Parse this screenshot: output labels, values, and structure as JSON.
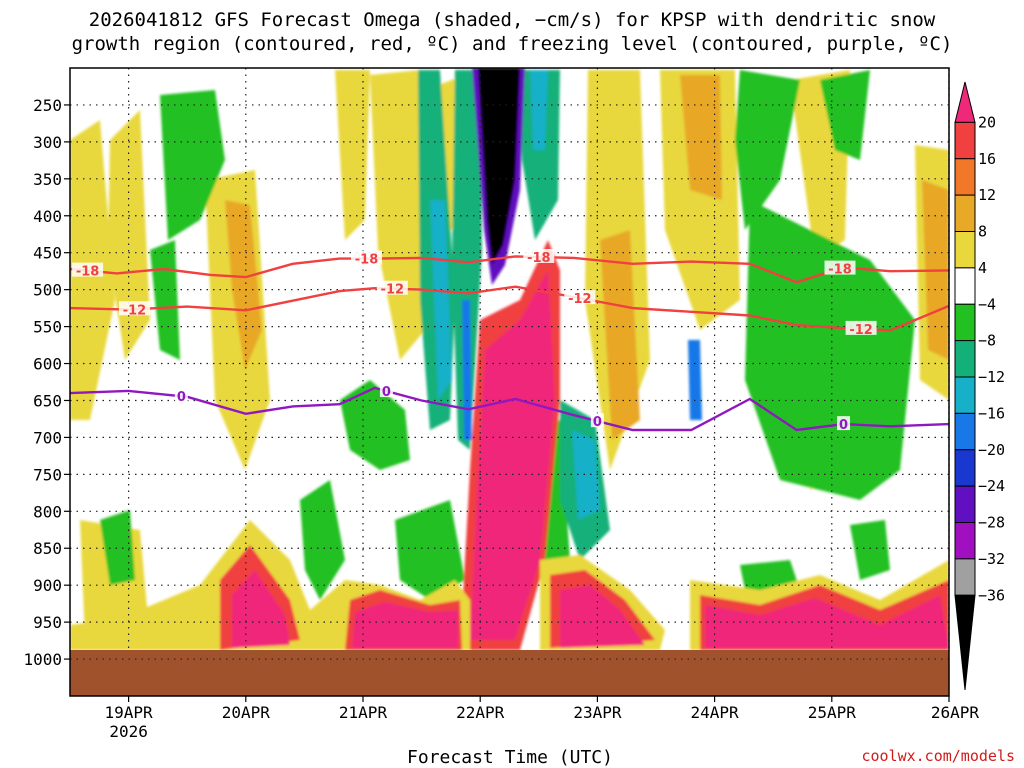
{
  "chart_data": {
    "type": "heatmap",
    "title_lines": [
      "2026041812 GFS Forecast Omega (shaded, −cm/s) for KPSP with dendritic snow",
      "growth region (contoured, red, ºC) and freezing level (contoured, purple, ºC)"
    ],
    "xlabel": "Forecast Time (UTC)",
    "credit": "coolwx.com/models",
    "x_ticks": [
      {
        "t": 0.5,
        "label": "19APR",
        "sub": "2026"
      },
      {
        "t": 1.5,
        "label": "20APR",
        "sub": ""
      },
      {
        "t": 2.5,
        "label": "21APR",
        "sub": ""
      },
      {
        "t": 3.5,
        "label": "22APR",
        "sub": ""
      },
      {
        "t": 4.5,
        "label": "23APR",
        "sub": ""
      },
      {
        "t": 5.5,
        "label": "24APR",
        "sub": ""
      },
      {
        "t": 6.5,
        "label": "25APR",
        "sub": ""
      },
      {
        "t": 7.5,
        "label": "26APR",
        "sub": ""
      }
    ],
    "x_range": [
      0,
      7.5
    ],
    "y_ticks": [
      250,
      300,
      350,
      400,
      450,
      500,
      550,
      600,
      650,
      700,
      750,
      800,
      850,
      900,
      950,
      1000
    ],
    "y_range": [
      200,
      1050
    ],
    "colorbar": {
      "labels": [
        "20",
        "16",
        "12",
        "8",
        "4",
        "−4",
        "−8",
        "−12",
        "−16",
        "−20",
        "−24",
        "−28",
        "−32",
        "−36"
      ],
      "colors": [
        "#f0287a",
        "#f04040",
        "#f07828",
        "#e8a828",
        "#e8d83c",
        "#ffffff",
        "#22c020",
        "#14b07a",
        "#18b0c8",
        "#1878e8",
        "#1838d0",
        "#6010c0",
        "#a010c0",
        "#a0a0a0",
        "#000000"
      ]
    },
    "contours": [
      {
        "name": "snow-growth-upper",
        "label": "-18",
        "color": "#f04040",
        "points": [
          [
            0,
            472
          ],
          [
            0.4,
            478
          ],
          [
            0.8,
            472
          ],
          [
            1.2,
            480
          ],
          [
            1.5,
            483
          ],
          [
            1.9,
            465
          ],
          [
            2.3,
            458
          ],
          [
            2.6,
            458
          ],
          [
            3.0,
            457
          ],
          [
            3.4,
            463
          ],
          [
            3.8,
            455
          ],
          [
            4.3,
            457
          ],
          [
            4.8,
            465
          ],
          [
            5.3,
            462
          ],
          [
            5.8,
            465
          ],
          [
            6.2,
            490
          ],
          [
            6.6,
            470
          ],
          [
            7.0,
            475
          ],
          [
            7.5,
            474
          ]
        ],
        "label_t": [
          0.15,
          2.53,
          4.0,
          6.57
        ]
      },
      {
        "name": "snow-growth-lower",
        "label": "-12",
        "color": "#f04040",
        "points": [
          [
            0,
            525
          ],
          [
            0.5,
            527
          ],
          [
            1.0,
            523
          ],
          [
            1.5,
            528
          ],
          [
            1.9,
            515
          ],
          [
            2.3,
            502
          ],
          [
            2.6,
            498
          ],
          [
            3.0,
            500
          ],
          [
            3.4,
            505
          ],
          [
            3.8,
            496
          ],
          [
            4.3,
            510
          ],
          [
            4.8,
            525
          ],
          [
            5.3,
            530
          ],
          [
            5.8,
            535
          ],
          [
            6.2,
            548
          ],
          [
            6.6,
            552
          ],
          [
            7.0,
            555
          ],
          [
            7.5,
            522
          ]
        ],
        "label_t": [
          0.55,
          2.75,
          4.35,
          6.75
        ]
      },
      {
        "name": "freezing-level",
        "label": "0",
        "color": "#9018c0",
        "points": [
          [
            0,
            640
          ],
          [
            0.5,
            637
          ],
          [
            1.0,
            645
          ],
          [
            1.5,
            668
          ],
          [
            1.9,
            658
          ],
          [
            2.3,
            655
          ],
          [
            2.6,
            633
          ],
          [
            3.0,
            650
          ],
          [
            3.4,
            662
          ],
          [
            3.8,
            648
          ],
          [
            4.3,
            670
          ],
          [
            4.8,
            690
          ],
          [
            5.3,
            690
          ],
          [
            5.8,
            648
          ],
          [
            6.2,
            690
          ],
          [
            6.6,
            682
          ],
          [
            7.0,
            685
          ],
          [
            7.5,
            682
          ]
        ],
        "label_t": [
          0.95,
          2.7,
          4.5,
          6.6
        ]
      }
    ]
  }
}
